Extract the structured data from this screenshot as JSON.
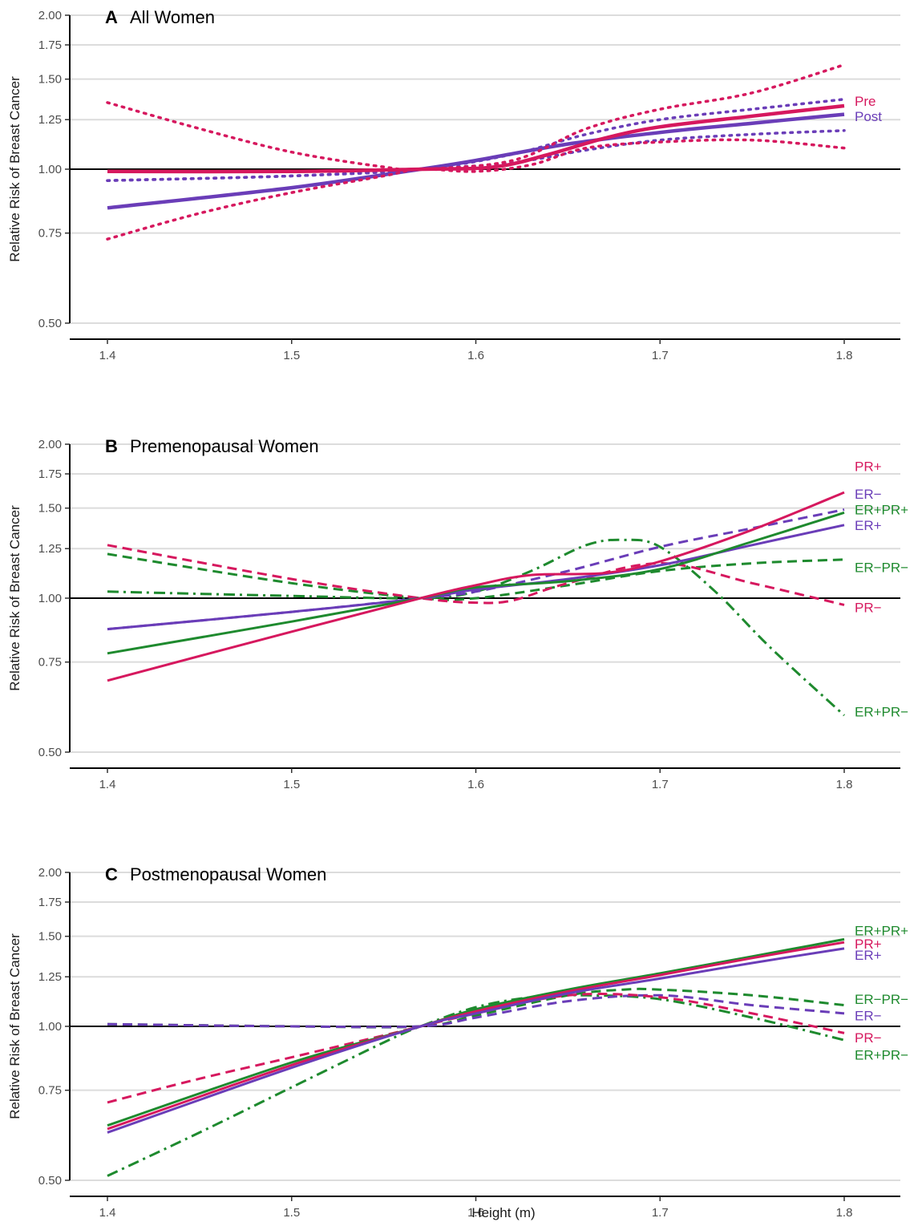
{
  "colors": {
    "pre": "#d6185e",
    "post": "#6a3db8",
    "green": "#1e8a2e",
    "grid": "#dcdcdc",
    "reference": "#000000"
  },
  "xlabel": "Height (m)",
  "ylabel": "Relative Risk of Breast Cancer",
  "chart_data": [
    {
      "type": "line",
      "letter": "A",
      "title": "All Women",
      "xlabel": "",
      "ylabel": "Relative Risk of Breast Cancer",
      "x_ticks": [
        "1.4",
        "1.5",
        "1.6",
        "1.7",
        "1.8"
      ],
      "y_ticks": [
        "0.50",
        "0.75",
        "1.00",
        "1.25",
        "1.50",
        "1.75",
        "2.00"
      ],
      "xlim": [
        1.38,
        1.83
      ],
      "ylim": [
        0.5,
        2.0
      ],
      "y_scale": "log",
      "grid": "horizontal",
      "reference_line": 1.0,
      "series": [
        {
          "name": "Post",
          "color": "#6a3db8",
          "dash": "solid",
          "width": 4.5,
          "x": [
            1.4,
            1.5,
            1.57,
            1.6,
            1.65,
            1.7,
            1.75,
            1.8
          ],
          "y": [
            0.84,
            0.92,
            1.0,
            1.04,
            1.12,
            1.18,
            1.23,
            1.28
          ]
        },
        {
          "color": "#6a3db8",
          "dash": "dotted",
          "width": 3.5,
          "x": [
            1.4,
            1.5,
            1.57,
            1.62,
            1.66,
            1.7,
            1.75,
            1.8
          ],
          "y": [
            0.95,
            0.97,
            1.0,
            1.07,
            1.17,
            1.25,
            1.31,
            1.37
          ]
        },
        {
          "color": "#6a3db8",
          "dash": "dotted",
          "width": 3.5,
          "x": [
            1.4,
            1.5,
            1.57,
            1.62,
            1.66,
            1.7,
            1.75,
            1.8
          ],
          "y": [
            0.95,
            0.97,
            1.0,
            1.03,
            1.09,
            1.14,
            1.17,
            1.19
          ]
        },
        {
          "name": "Pre",
          "color": "#d6185e",
          "dash": "solid",
          "width": 4.5,
          "x": [
            1.4,
            1.5,
            1.57,
            1.61,
            1.64,
            1.67,
            1.7,
            1.75,
            1.8
          ],
          "y": [
            0.99,
            0.99,
            1.0,
            1.01,
            1.07,
            1.15,
            1.21,
            1.27,
            1.33
          ]
        },
        {
          "color": "#d6185e",
          "dash": "dotted",
          "width": 3.5,
          "x": [
            1.4,
            1.45,
            1.5,
            1.55,
            1.57,
            1.62,
            1.66,
            1.7,
            1.75,
            1.8
          ],
          "y": [
            1.35,
            1.2,
            1.08,
            1.01,
            1.0,
            1.04,
            1.2,
            1.31,
            1.41,
            1.6
          ]
        },
        {
          "color": "#d6185e",
          "dash": "dotted",
          "width": 3.5,
          "x": [
            1.4,
            1.45,
            1.5,
            1.55,
            1.57,
            1.6,
            1.63,
            1.66,
            1.7,
            1.75,
            1.8
          ],
          "y": [
            0.73,
            0.82,
            0.9,
            0.97,
            1.0,
            0.99,
            1.02,
            1.1,
            1.13,
            1.14,
            1.1
          ]
        }
      ],
      "labels": [
        {
          "text": "Pre",
          "color": "#d6185e",
          "y": 1.36
        },
        {
          "text": "Post",
          "color": "#6a3db8",
          "y": 1.27
        }
      ]
    },
    {
      "type": "line",
      "letter": "B",
      "title": "Premenopausal Women",
      "xlabel": "",
      "ylabel": "Relative Risk of Breast Cancer",
      "x_ticks": [
        "1.4",
        "1.5",
        "1.6",
        "1.7",
        "1.8"
      ],
      "y_ticks": [
        "0.50",
        "0.75",
        "1.00",
        "1.25",
        "1.50",
        "1.75",
        "2.00"
      ],
      "xlim": [
        1.38,
        1.83
      ],
      "ylim": [
        0.5,
        2.0
      ],
      "y_scale": "log",
      "grid": "horizontal",
      "reference_line": 1.0,
      "series": [
        {
          "name": "ER+PR−",
          "color": "#1e8a2e",
          "dash": "dashdot",
          "width": 3,
          "x": [
            1.4,
            1.5,
            1.57,
            1.6,
            1.63,
            1.66,
            1.68,
            1.7,
            1.73,
            1.76,
            1.8
          ],
          "y": [
            1.03,
            1.01,
            1.0,
            1.03,
            1.13,
            1.27,
            1.3,
            1.26,
            1.03,
            0.8,
            0.59
          ]
        },
        {
          "name": "ER−PR−",
          "color": "#1e8a2e",
          "dash": "dashed",
          "width": 3,
          "x": [
            1.4,
            1.5,
            1.57,
            1.6,
            1.65,
            1.7,
            1.75,
            1.8
          ],
          "y": [
            1.22,
            1.07,
            1.0,
            1.0,
            1.06,
            1.13,
            1.17,
            1.19
          ]
        },
        {
          "name": "PR−",
          "color": "#d6185e",
          "dash": "dashed",
          "width": 3,
          "x": [
            1.4,
            1.5,
            1.57,
            1.6,
            1.62,
            1.65,
            1.7,
            1.75,
            1.8
          ],
          "y": [
            1.27,
            1.09,
            1.0,
            0.98,
            0.99,
            1.07,
            1.17,
            1.07,
            0.97
          ]
        },
        {
          "name": "ER−",
          "color": "#6a3db8",
          "dash": "dashed",
          "width": 3,
          "x": [
            1.4,
            1.5,
            1.57,
            1.6,
            1.65,
            1.7,
            1.75,
            1.8
          ],
          "y": [
            0.87,
            0.94,
            1.0,
            1.03,
            1.13,
            1.26,
            1.37,
            1.49
          ]
        },
        {
          "name": "ER+",
          "color": "#6a3db8",
          "dash": "solid",
          "width": 3,
          "x": [
            1.4,
            1.5,
            1.57,
            1.6,
            1.65,
            1.7,
            1.75,
            1.8
          ],
          "y": [
            0.87,
            0.94,
            1.0,
            1.04,
            1.09,
            1.16,
            1.27,
            1.39
          ]
        },
        {
          "name": "ER+PR+",
          "color": "#1e8a2e",
          "dash": "solid",
          "width": 3,
          "x": [
            1.4,
            1.5,
            1.57,
            1.6,
            1.65,
            1.7,
            1.75,
            1.8
          ],
          "y": [
            0.78,
            0.9,
            1.0,
            1.05,
            1.08,
            1.14,
            1.29,
            1.47
          ]
        },
        {
          "name": "PR+",
          "color": "#d6185e",
          "dash": "solid",
          "width": 3,
          "x": [
            1.4,
            1.5,
            1.57,
            1.6,
            1.63,
            1.67,
            1.7,
            1.75,
            1.8
          ],
          "y": [
            0.69,
            0.86,
            1.0,
            1.06,
            1.11,
            1.12,
            1.18,
            1.36,
            1.61
          ]
        }
      ],
      "labels": [
        {
          "text": "PR+",
          "color": "#d6185e",
          "y": 1.81
        },
        {
          "text": "ER−",
          "color": "#6a3db8",
          "y": 1.6
        },
        {
          "text": "ER+PR+",
          "color": "#1e8a2e",
          "y": 1.49
        },
        {
          "text": "ER+",
          "color": "#6a3db8",
          "y": 1.39
        },
        {
          "text": "ER−PR−",
          "color": "#1e8a2e",
          "y": 1.15
        },
        {
          "text": "PR−",
          "color": "#d6185e",
          "y": 0.96
        },
        {
          "text": "ER+PR−",
          "color": "#1e8a2e",
          "y": 0.6
        }
      ]
    },
    {
      "type": "line",
      "letter": "C",
      "title": "Postmenopausal Women",
      "xlabel": "Height (m)",
      "ylabel": "Relative Risk of Breast Cancer",
      "x_ticks": [
        "1.4",
        "1.5",
        "1.6",
        "1.7",
        "1.8"
      ],
      "y_ticks": [
        "0.50",
        "0.75",
        "1.00",
        "1.25",
        "1.50",
        "1.75",
        "2.00"
      ],
      "xlim": [
        1.38,
        1.83
      ],
      "ylim": [
        0.5,
        2.0
      ],
      "y_scale": "log",
      "grid": "horizontal",
      "reference_line": 1.0,
      "series": [
        {
          "name": "ER+PR−",
          "color": "#1e8a2e",
          "dash": "dashdot",
          "width": 3,
          "x": [
            1.4,
            1.45,
            1.5,
            1.55,
            1.57,
            1.6,
            1.63,
            1.66,
            1.7,
            1.75,
            1.8
          ],
          "y": [
            0.51,
            0.62,
            0.76,
            0.93,
            1.0,
            1.09,
            1.14,
            1.15,
            1.13,
            1.04,
            0.94
          ]
        },
        {
          "name": "ER−PR−",
          "color": "#1e8a2e",
          "dash": "dashed",
          "width": 3,
          "x": [
            1.4,
            1.5,
            1.57,
            1.6,
            1.65,
            1.68,
            1.7,
            1.75,
            1.8
          ],
          "y": [
            1.01,
            1.0,
            1.0,
            1.05,
            1.15,
            1.18,
            1.18,
            1.15,
            1.1
          ]
        },
        {
          "name": "ER−",
          "color": "#6a3db8",
          "dash": "dashed",
          "width": 3,
          "x": [
            1.4,
            1.5,
            1.57,
            1.6,
            1.65,
            1.7,
            1.75,
            1.8
          ],
          "y": [
            1.01,
            1.0,
            1.0,
            1.04,
            1.12,
            1.15,
            1.1,
            1.06
          ]
        },
        {
          "name": "PR−",
          "color": "#d6185e",
          "dash": "dashed",
          "width": 3,
          "x": [
            1.4,
            1.45,
            1.5,
            1.55,
            1.57,
            1.6,
            1.65,
            1.7,
            1.75,
            1.8
          ],
          "y": [
            0.71,
            0.79,
            0.87,
            0.96,
            1.0,
            1.06,
            1.15,
            1.14,
            1.06,
            0.97
          ]
        },
        {
          "name": "ER+PR+",
          "color": "#1e8a2e",
          "dash": "solid",
          "width": 3,
          "x": [
            1.4,
            1.5,
            1.57,
            1.6,
            1.65,
            1.7,
            1.75,
            1.8
          ],
          "y": [
            0.64,
            0.85,
            1.0,
            1.08,
            1.18,
            1.27,
            1.37,
            1.48
          ]
        },
        {
          "name": "PR+",
          "color": "#d6185e",
          "dash": "solid",
          "width": 3,
          "x": [
            1.4,
            1.5,
            1.57,
            1.6,
            1.65,
            1.7,
            1.75,
            1.8
          ],
          "y": [
            0.63,
            0.84,
            1.0,
            1.07,
            1.17,
            1.26,
            1.36,
            1.46
          ]
        },
        {
          "name": "ER+",
          "color": "#6a3db8",
          "dash": "solid",
          "width": 3,
          "x": [
            1.4,
            1.5,
            1.57,
            1.6,
            1.65,
            1.7,
            1.75,
            1.8
          ],
          "y": [
            0.62,
            0.83,
            1.0,
            1.06,
            1.16,
            1.24,
            1.33,
            1.42
          ]
        }
      ],
      "labels": [
        {
          "text": "ER+PR+",
          "color": "#1e8a2e",
          "y": 1.54
        },
        {
          "text": "PR+",
          "color": "#d6185e",
          "y": 1.45
        },
        {
          "text": "ER+",
          "color": "#6a3db8",
          "y": 1.38
        },
        {
          "text": "ER−PR−",
          "color": "#1e8a2e",
          "y": 1.13
        },
        {
          "text": "ER−",
          "color": "#6a3db8",
          "y": 1.05
        },
        {
          "text": "PR−",
          "color": "#d6185e",
          "y": 0.95
        },
        {
          "text": "ER+PR−",
          "color": "#1e8a2e",
          "y": 0.88
        }
      ]
    }
  ]
}
